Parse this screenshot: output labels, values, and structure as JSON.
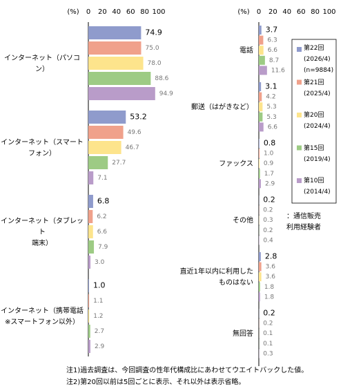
{
  "chart_data": [
    {
      "type": "bar",
      "orientation": "horizontal",
      "axis_title": "(%)",
      "categories": [
        "インターネット（パソコン）",
        "インターネット（スマート\nフォン）",
        "インターネット（タブレット\n端末）",
        "インターネット（携帯電話\n※スマートフォン以外）"
      ],
      "xlim": [
        0,
        100
      ],
      "xticks": [
        0,
        20,
        40,
        60,
        80,
        100
      ],
      "series": [
        {
          "color": "#8f9bcc",
          "values": [
            74.9,
            53.2,
            6.8,
            1.0
          ],
          "value_labels": [
            "74.9",
            "53.2",
            "6.8",
            "1.0"
          ]
        },
        {
          "color": "#f0a18b",
          "values": [
            75.0,
            49.6,
            6.2,
            1.1
          ],
          "value_labels": [
            "75.0",
            "49.6",
            "6.2",
            "1.1"
          ]
        },
        {
          "color": "#fde48c",
          "values": [
            78.0,
            46.7,
            6.6,
            1.2
          ],
          "value_labels": [
            "78.0",
            "46.7",
            "6.6",
            "1.2"
          ]
        },
        {
          "color": "#9dcb84",
          "values": [
            88.6,
            27.7,
            7.9,
            2.7
          ],
          "value_labels": [
            "88.6",
            "27.7",
            "7.9",
            "2.7"
          ]
        },
        {
          "color": "#b99cc9",
          "values": [
            94.9,
            7.1,
            3.0,
            2.9
          ],
          "value_labels": [
            "94.9",
            "7.1",
            "3.0",
            "2.9"
          ]
        }
      ]
    },
    {
      "type": "bar",
      "orientation": "horizontal",
      "axis_title": "(%)",
      "categories": [
        "電話",
        "郵送（はがきなど）",
        "ファックス",
        "その他",
        "直近1年以内に利用した\nものはない",
        "無回答"
      ],
      "xlim": [
        0,
        100
      ],
      "xticks": [
        0,
        20,
        40,
        60,
        80,
        100
      ],
      "series": [
        {
          "name": "第22回\n(2026/4)\n(n=9884)",
          "color": "#8f9bcc",
          "values": [
            3.7,
            3.1,
            0.8,
            0.2,
            2.8,
            0.2
          ],
          "value_labels": [
            "3.7",
            "3.1",
            "0.8",
            "0.2",
            "2.8",
            "0.2"
          ]
        },
        {
          "name": "第21回\n(2025/4)",
          "color": "#f0a18b",
          "values": [
            6.3,
            4.2,
            1.0,
            0.2,
            3.6,
            0.2
          ],
          "value_labels": [
            "6.3",
            "4.2",
            "1.0",
            "0.2",
            "3.6",
            "0.2"
          ]
        },
        {
          "name": "第20回\n(2024/4)",
          "color": "#fde48c",
          "values": [
            6.6,
            5.3,
            0.9,
            0.3,
            3.6,
            0.1
          ],
          "value_labels": [
            "6.6",
            "5.3",
            "0.9",
            "0.3",
            "3.6",
            "0.1"
          ]
        },
        {
          "name": "第15回\n(2019/4)",
          "color": "#9dcb84",
          "values": [
            8.7,
            5.3,
            1.7,
            0.2,
            1.8,
            0.1
          ],
          "value_labels": [
            "8.7",
            "5.3",
            "1.7",
            "0.2",
            "1.8",
            "0.1"
          ]
        },
        {
          "name": "第10回\n(2014/4)",
          "color": "#b99cc9",
          "values": [
            11.6,
            6.6,
            2.9,
            0.4,
            1.8,
            0.3
          ],
          "value_labels": [
            "11.6",
            "6.6",
            "2.9",
            "0.4",
            "1.8",
            "0.3"
          ]
        }
      ],
      "annotation": "：通信販売\n利用経験者"
    }
  ],
  "notes": [
    "注1)過去調査は、今回調査の性年代構成比にあわせてウエイトバックした値。",
    "注2)第20回以前は5回ごとに表示、それ以外は表示省略。"
  ]
}
